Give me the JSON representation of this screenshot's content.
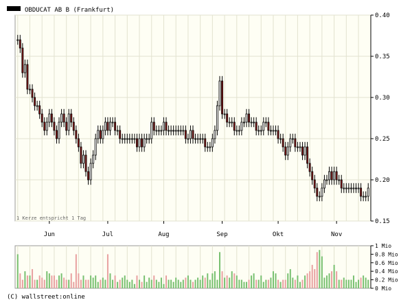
{
  "chart_data": [
    {
      "type": "candlestick",
      "title": "OBDUCAT AB B (Frankfurt)",
      "annotation": "1 Kerze entspricht 1 Tag",
      "ylim": [
        0.15,
        0.4
      ],
      "y_ticks": [
        "0.40",
        "0.35",
        "0.30",
        "0.25",
        "0.20",
        "0.15"
      ],
      "y_tick_values": [
        0.4,
        0.35,
        0.3,
        0.25,
        0.2,
        0.15
      ],
      "x_month_labels": [
        "Jun",
        "Jul",
        "Aug",
        "Sep",
        "Okt",
        "Nov"
      ],
      "grid": true,
      "colors": {
        "up": "#ffffff",
        "down": "#8b1a1a",
        "wick": "#000000",
        "plot_bg": "#fefef4",
        "grid": "#e2e2cf"
      },
      "close": [
        0.37,
        0.36,
        0.33,
        0.34,
        0.31,
        0.31,
        0.3,
        0.29,
        0.29,
        0.28,
        0.27,
        0.26,
        0.27,
        0.28,
        0.27,
        0.26,
        0.25,
        0.27,
        0.28,
        0.27,
        0.26,
        0.28,
        0.27,
        0.26,
        0.25,
        0.24,
        0.22,
        0.23,
        0.21,
        0.2,
        0.22,
        0.23,
        0.25,
        0.26,
        0.25,
        0.26,
        0.27,
        0.26,
        0.27,
        0.27,
        0.26,
        0.26,
        0.25,
        0.25,
        0.25,
        0.25,
        0.25,
        0.25,
        0.25,
        0.24,
        0.25,
        0.24,
        0.25,
        0.25,
        0.25,
        0.27,
        0.26,
        0.26,
        0.26,
        0.26,
        0.27,
        0.26,
        0.26,
        0.26,
        0.26,
        0.26,
        0.26,
        0.26,
        0.26,
        0.25,
        0.25,
        0.26,
        0.25,
        0.25,
        0.25,
        0.25,
        0.25,
        0.24,
        0.24,
        0.24,
        0.25,
        0.26,
        0.29,
        0.32,
        0.28,
        0.28,
        0.27,
        0.27,
        0.27,
        0.26,
        0.26,
        0.26,
        0.27,
        0.27,
        0.28,
        0.27,
        0.27,
        0.27,
        0.26,
        0.26,
        0.26,
        0.27,
        0.27,
        0.26,
        0.26,
        0.26,
        0.26,
        0.25,
        0.25,
        0.24,
        0.23,
        0.24,
        0.25,
        0.25,
        0.24,
        0.24,
        0.24,
        0.23,
        0.24,
        0.22,
        0.21,
        0.2,
        0.19,
        0.18,
        0.18,
        0.19,
        0.2,
        0.2,
        0.21,
        0.2,
        0.21,
        0.2,
        0.2,
        0.19,
        0.19,
        0.19,
        0.19,
        0.19,
        0.19,
        0.19,
        0.19,
        0.18,
        0.18,
        0.18,
        0.19
      ],
      "volume_axis_label": "Mio",
      "volume_ylim": [
        0,
        1.0
      ],
      "volume_ticks": [
        "1 Mio",
        "0.8 Mio",
        "0.6 Mio",
        "0.4 Mio",
        "0.2 Mio",
        "0 Mio"
      ],
      "volume_tick_values": [
        1.0,
        0.8,
        0.6,
        0.4,
        0.2,
        0.0
      ],
      "volume_colors": {
        "up": "#78c070",
        "down": "#e8a0a0"
      },
      "volume": [
        0.8,
        0.35,
        0.2,
        0.4,
        0.3,
        0.3,
        0.45,
        0.2,
        0.2,
        0.3,
        0.25,
        0.2,
        0.4,
        0.35,
        0.3,
        0.3,
        0.2,
        0.3,
        0.35,
        0.25,
        0.2,
        0.2,
        0.35,
        0.15,
        0.8,
        0.35,
        0.2,
        0.3,
        0.2,
        0.2,
        0.3,
        0.25,
        0.3,
        0.15,
        0.2,
        0.25,
        0.2,
        0.8,
        0.35,
        0.2,
        0.3,
        0.15,
        0.2,
        0.25,
        0.3,
        0.2,
        0.15,
        0.2,
        0.1,
        0.3,
        0.2,
        0.15,
        0.3,
        0.15,
        0.25,
        0.2,
        0.3,
        0.2,
        0.15,
        0.25,
        0.1,
        0.3,
        0.2,
        0.2,
        0.15,
        0.25,
        0.2,
        0.15,
        0.2,
        0.25,
        0.3,
        0.2,
        0.15,
        0.2,
        0.25,
        0.2,
        0.3,
        0.25,
        0.35,
        0.2,
        0.35,
        0.4,
        0.2,
        0.85,
        0.4,
        0.25,
        0.3,
        0.25,
        0.4,
        0.35,
        0.3,
        0.2,
        0.2,
        0.15,
        0.15,
        0.2,
        0.3,
        0.35,
        0.2,
        0.2,
        0.3,
        0.15,
        0.2,
        0.2,
        0.25,
        0.4,
        0.35,
        0.2,
        0.15,
        0.2,
        0.2,
        0.35,
        0.45,
        0.25,
        0.2,
        0.3,
        0.15,
        0.2,
        0.3,
        0.35,
        0.4,
        0.55,
        0.45,
        0.85,
        0.9,
        0.75,
        0.25,
        0.3,
        0.35,
        0.4,
        0.55,
        0.4,
        0.2,
        0.2,
        0.25,
        0.2,
        0.2,
        0.2,
        0.3,
        0.15,
        0.2,
        0.25,
        0.3,
        0.25,
        0.2
      ]
    }
  ],
  "footer": {
    "copyright": "(C) wallstreet:online"
  }
}
